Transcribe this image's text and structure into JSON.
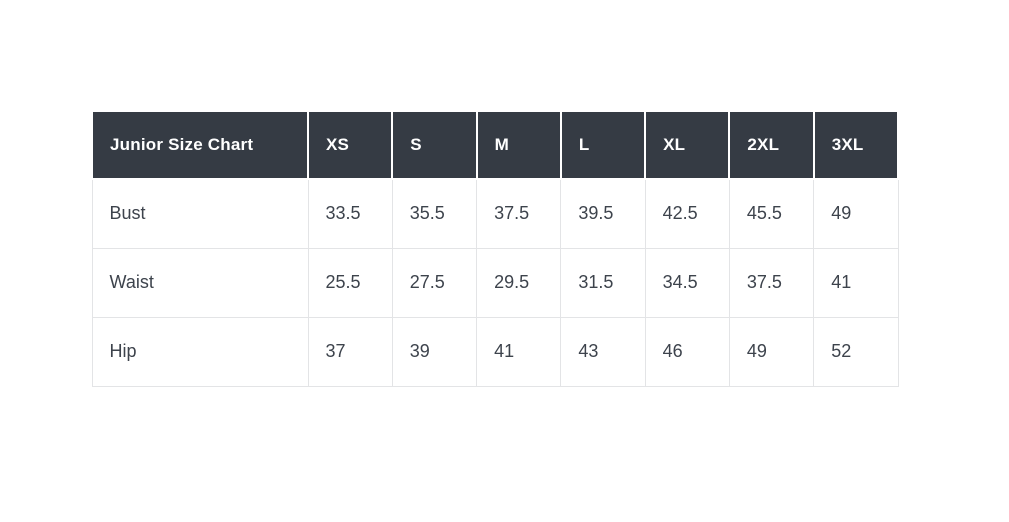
{
  "colors": {
    "header_bg": "#353b44",
    "header_text": "#ffffff",
    "body_text": "#3d434c",
    "border": "#e3e4e6",
    "page_bg": "#ffffff"
  },
  "chart_data": {
    "type": "table",
    "title": "Junior Size Chart",
    "columns": [
      "XS",
      "S",
      "M",
      "L",
      "XL",
      "2XL",
      "3XL"
    ],
    "rows": [
      {
        "label": "Bust",
        "values": [
          "33.5",
          "35.5",
          "37.5",
          "39.5",
          "42.5",
          "45.5",
          "49"
        ]
      },
      {
        "label": "Waist",
        "values": [
          "25.5",
          "27.5",
          "29.5",
          "31.5",
          "34.5",
          "37.5",
          "41"
        ]
      },
      {
        "label": "Hip",
        "values": [
          "37",
          "39",
          "41",
          "43",
          "46",
          "49",
          "52"
        ]
      }
    ]
  }
}
